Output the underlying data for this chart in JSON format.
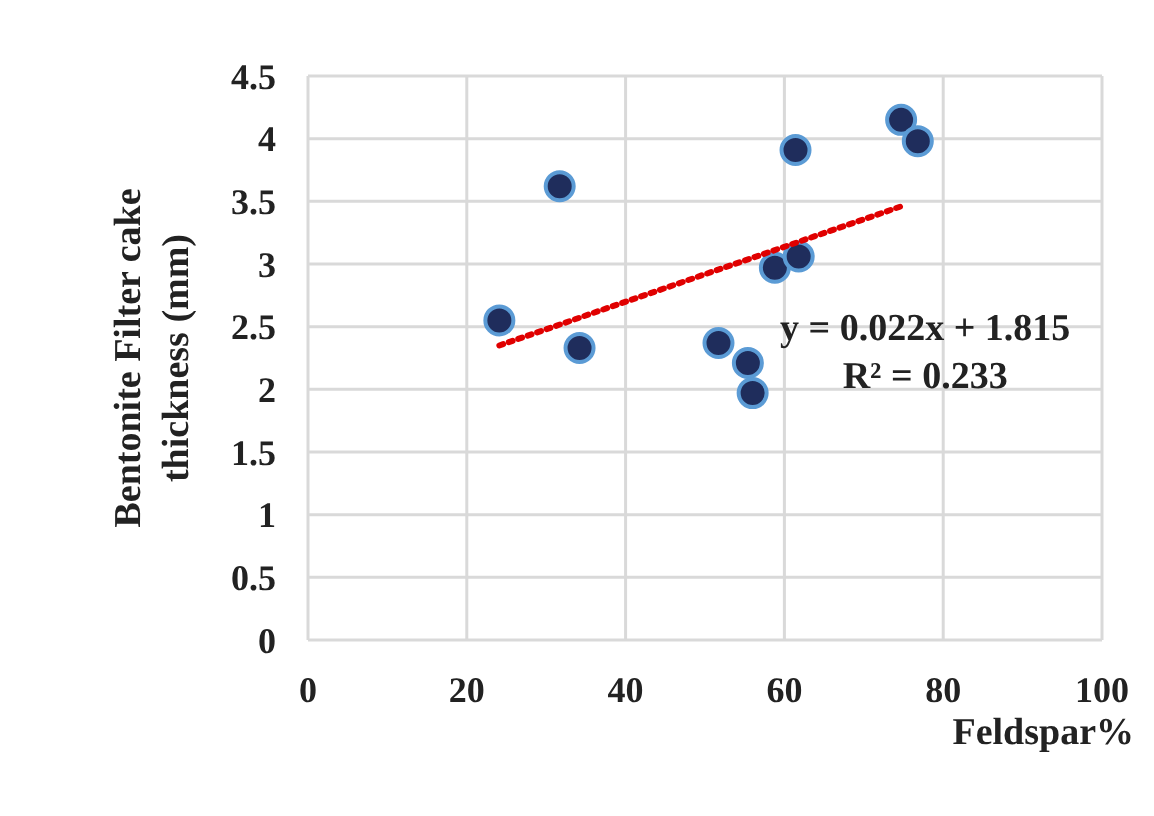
{
  "chart_data": {
    "type": "scatter",
    "xlabel": "Feldspar%",
    "ylabel": "Bentonite Filter cake thickness (mm)",
    "series": [
      {
        "type": "scatter",
        "color": "#1f2d5c",
        "marker": "circle",
        "x": [
          24.1,
          31.7,
          34.2,
          51.7,
          55.4,
          56.0,
          58.8,
          61.8,
          61.4,
          74.7,
          76.8
        ],
        "values": [
          2.55,
          3.62,
          2.33,
          2.37,
          2.21,
          1.97,
          2.97,
          3.06,
          3.91,
          4.15,
          3.98
        ]
      },
      {
        "type": "line",
        "color": "#e00000",
        "marker": "none",
        "line_style": "dotted",
        "x": [
          24.1,
          74.7
        ],
        "values": [
          2.35,
          3.46
        ]
      }
    ],
    "annotations": [
      "y = 0.022x + 1.815",
      "R² = 0.233"
    ],
    "xlim": [
      0,
      100
    ],
    "xticks": [
      0,
      20,
      40,
      60,
      80,
      100
    ],
    "ylim": [
      0,
      4.5
    ],
    "yticks": [
      0,
      0.5,
      1,
      1.5,
      2,
      2.5,
      3,
      3.5,
      4,
      4.5
    ],
    "grid": true
  }
}
